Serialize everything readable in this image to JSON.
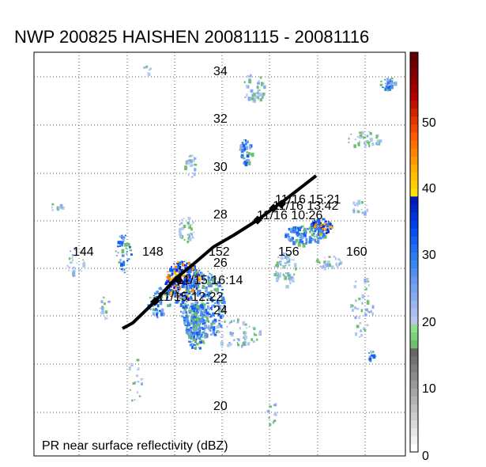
{
  "title": "NWP 200825 HAISHEN 20081115 - 20081116",
  "footer_label": "PR near surface reflectivity (dBZ)",
  "lon_labels": [
    "144",
    "148",
    "152",
    "156",
    "160"
  ],
  "lat_labels": [
    "34",
    "32",
    "30",
    "28",
    "26",
    "24",
    "22",
    "20"
  ],
  "track_labels": [
    "11/16 15:21",
    "11/16 13:42",
    "11/16 10:26",
    "11/15 16:14",
    "11/15 12:22"
  ],
  "colorbar": {
    "ticks": [
      "50",
      "40",
      "30",
      "20",
      "10",
      "0"
    ],
    "min": 0,
    "max": 58,
    "colors": [
      "#ffffff",
      "#f2f2f2",
      "#e6e6e6",
      "#d9d9d9",
      "#cccccc",
      "#bfbfbf",
      "#b3b3b3",
      "#a6a6a6",
      "#999999",
      "#8c8c8c",
      "#7f7f7f",
      "#737373",
      "#666666",
      "#6fbf6f",
      "#7fcf7f",
      "#8fdf8f",
      "#b8c8f0",
      "#a8bff0",
      "#98b5f0",
      "#88abf0",
      "#78a1f0",
      "#6896f0",
      "#508ff0",
      "#3c86f0",
      "#2c7cf0",
      "#1f6ff0",
      "#1460f0",
      "#0a4ff0",
      "#0040e8",
      "#0033d8",
      "#0026c8",
      "#001ab8",
      "#ffe000",
      "#ffd000",
      "#ffbf00",
      "#ffae00",
      "#ff9900",
      "#ff8400",
      "#ff7000",
      "#ff5c00",
      "#f04800",
      "#e03600",
      "#d02400",
      "#c01200",
      "#b00000",
      "#a00000",
      "#900000",
      "#800000",
      "#700000",
      "#600000"
    ]
  }
}
